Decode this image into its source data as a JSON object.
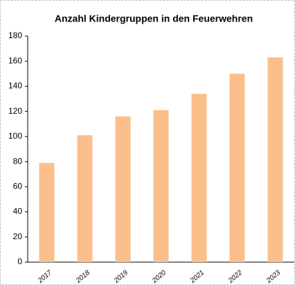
{
  "chart_data": {
    "type": "bar",
    "title": "Anzahl Kindergruppen in den Feuerwehren",
    "categories": [
      "2017",
      "2018",
      "2019",
      "2020",
      "2021",
      "2022",
      "2023"
    ],
    "values": [
      79,
      101,
      116,
      121,
      134,
      150,
      163
    ],
    "color": "#fbbf8c",
    "ylim": [
      0,
      180
    ],
    "yticks": [
      0,
      20,
      40,
      60,
      80,
      100,
      120,
      140,
      160,
      180
    ],
    "grid": false
  }
}
